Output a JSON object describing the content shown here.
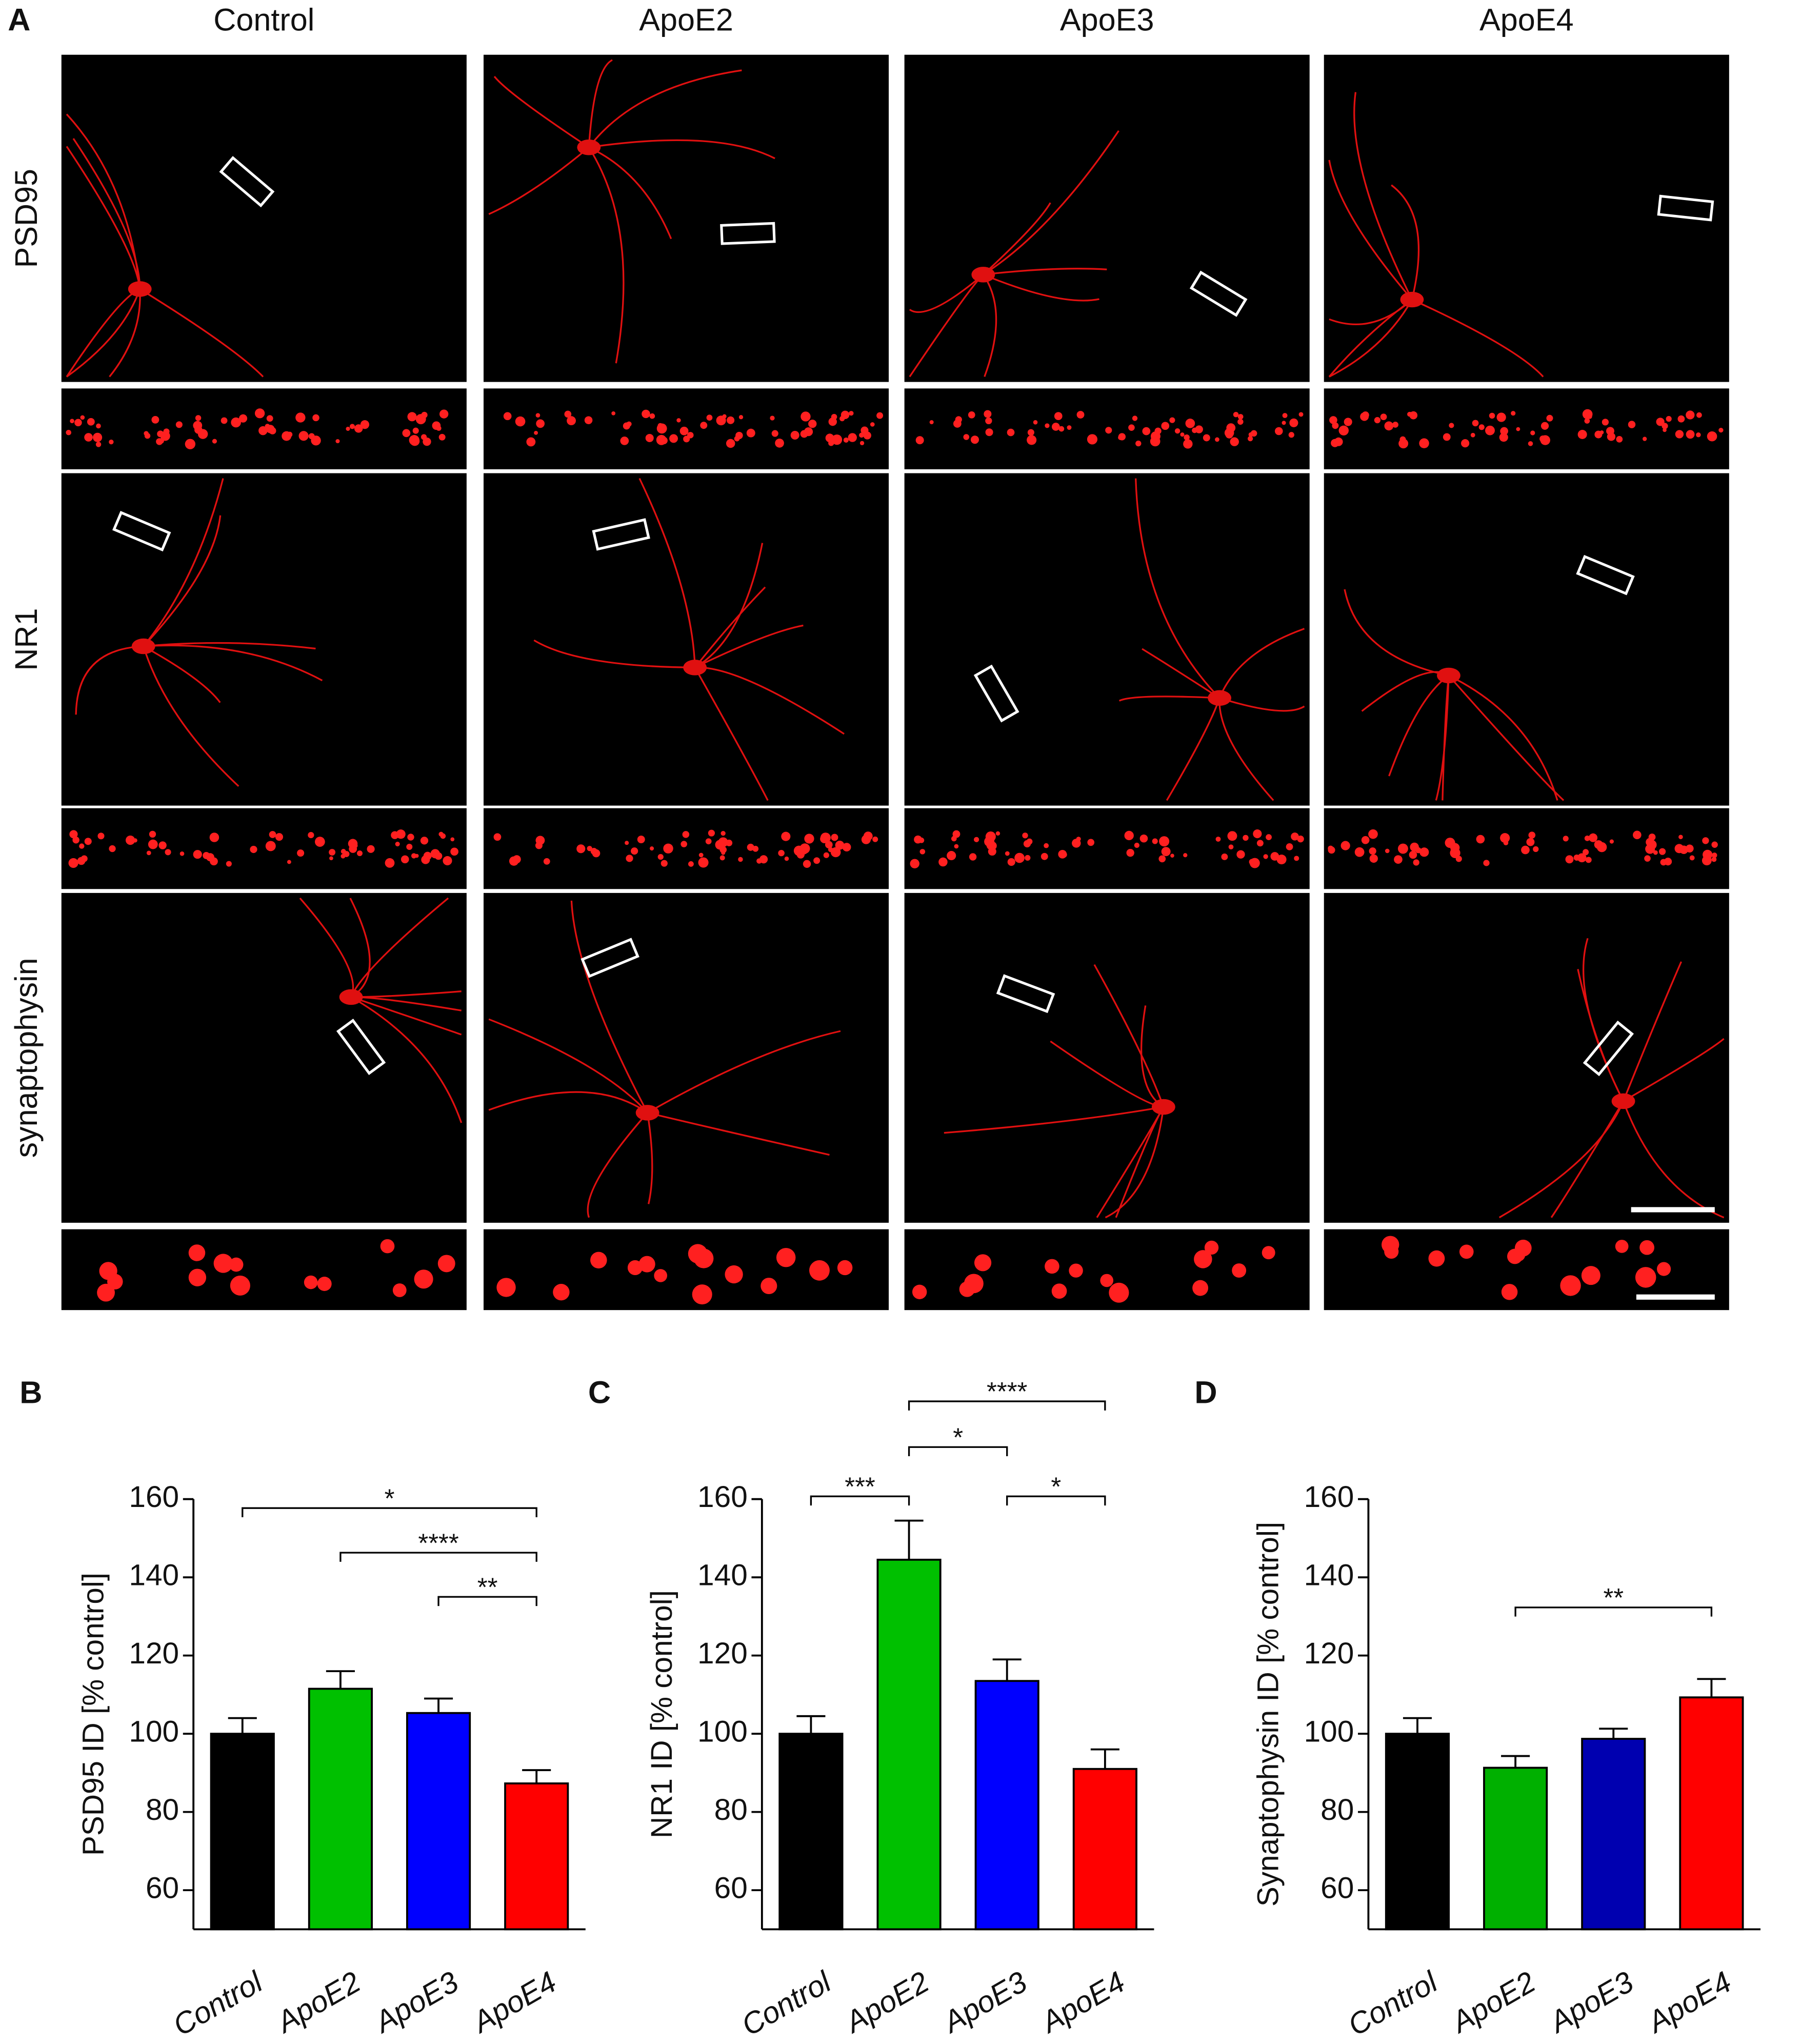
{
  "panel_a": {
    "label": "A",
    "columns": [
      "Control",
      "ApoE2",
      "ApoE3",
      "ApoE4"
    ],
    "rows": [
      "PSD95",
      "NR1",
      "synaptophysin"
    ]
  },
  "chart_data": [
    {
      "type": "bar",
      "panel_label": "B",
      "ylabel": "PSD95 ID  [% control]",
      "categories": [
        "Control",
        "ApoE2",
        "ApoE3",
        "ApoE4"
      ],
      "values": [
        100,
        111.5,
        105.3,
        87.3
      ],
      "errors": [
        4,
        4.5,
        3.7,
        3.4
      ],
      "colors": [
        "#000000",
        "#00c000",
        "#0000ff",
        "#ff0000"
      ],
      "ylim": [
        50,
        160
      ],
      "yticks": [
        60,
        80,
        100,
        120,
        140,
        160
      ],
      "brackets": [
        {
          "from": 0,
          "to": 3,
          "y": 157.7,
          "label": "*"
        },
        {
          "from": 1,
          "to": 3,
          "y": 146.3,
          "label": "****"
        },
        {
          "from": 2,
          "to": 3,
          "y": 135,
          "label": "**"
        }
      ]
    },
    {
      "type": "bar",
      "panel_label": "C",
      "ylabel": "NR1 ID [% control]",
      "categories": [
        "Control",
        "ApoE2",
        "ApoE3",
        "ApoE4"
      ],
      "values": [
        100,
        144.5,
        113.5,
        91
      ],
      "errors": [
        4.5,
        10,
        5.5,
        5
      ],
      "colors": [
        "#000000",
        "#00c000",
        "#0000ff",
        "#ff0000"
      ],
      "ylim": [
        50,
        160
      ],
      "yticks": [
        60,
        80,
        100,
        120,
        140,
        160
      ],
      "brackets": [
        {
          "from": 0,
          "to": 1,
          "y": 160.7,
          "label": "***"
        },
        {
          "from": 2,
          "to": 3,
          "y": 160.7,
          "label": "*"
        },
        {
          "from": 1,
          "to": 2,
          "y": 173.3,
          "label": "*"
        },
        {
          "from": 1,
          "to": 3,
          "y": 185,
          "label": "****"
        }
      ]
    },
    {
      "type": "bar",
      "panel_label": "D",
      "ylabel": "Synaptophysin ID  [% control]",
      "categories": [
        "Control",
        "ApoE2",
        "ApoE3",
        "ApoE4"
      ],
      "values": [
        100,
        91.3,
        98.7,
        109.3
      ],
      "errors": [
        4,
        3,
        2.6,
        4.7
      ],
      "colors": [
        "#000000",
        "#00b000",
        "#0000b0",
        "#ff0000"
      ],
      "ylim": [
        50,
        160
      ],
      "yticks": [
        60,
        80,
        100,
        120,
        140,
        160
      ],
      "brackets": [
        {
          "from": 1,
          "to": 3,
          "y": 132.3,
          "label": "**"
        }
      ]
    }
  ]
}
